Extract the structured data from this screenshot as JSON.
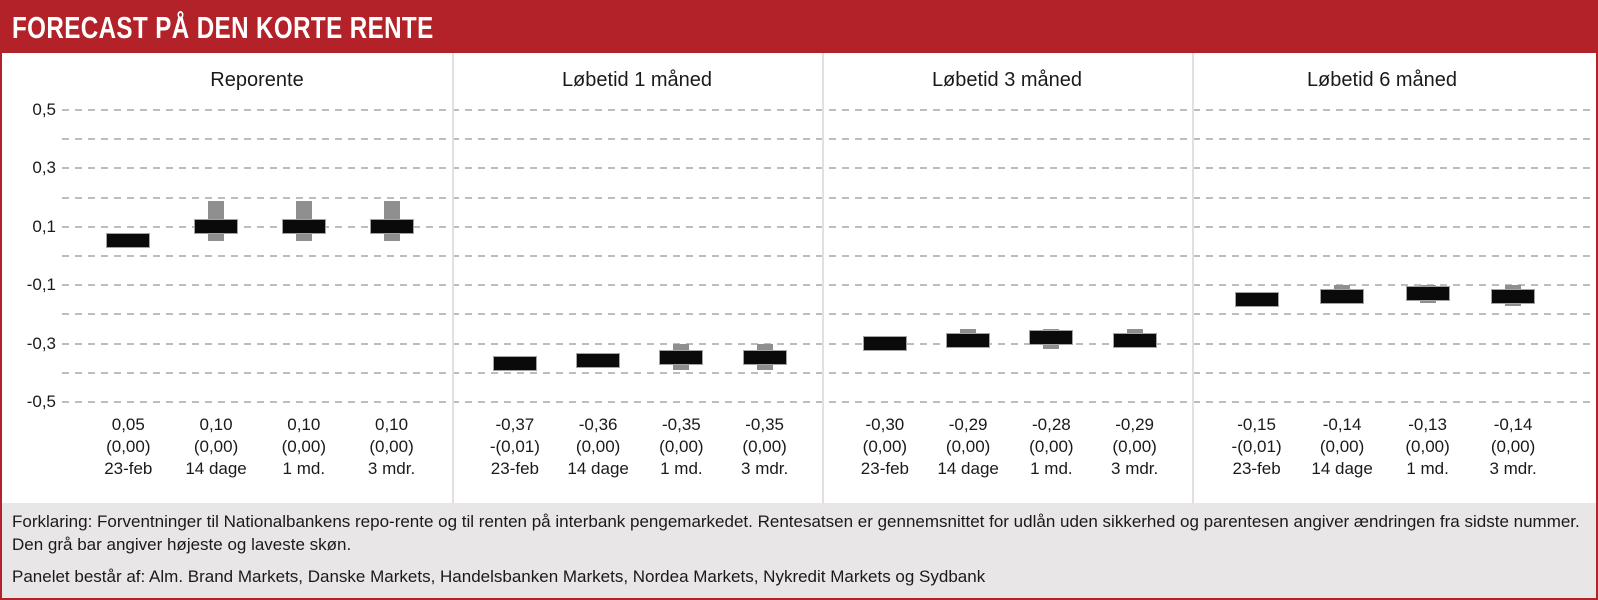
{
  "header": {
    "title": "FORECAST PÅ DEN KORTE RENTE"
  },
  "footer": {
    "explanation": "Forklaring: Forventninger til Nationalbankens repo-rente og til renten på interbank pengemarkedet. Rentesatsen er gennemsnittet for udlån uden sikkerhed og parentesen angiver ændringen fra sidste nummer. Den grå bar angiver højeste og laveste skøn.",
    "panel_note": "Panelet består af: Alm. Brand Markets, Danske Markets, Handelsbanken Markets, Nordea Markets, Nykredit Markets og Sydbank"
  },
  "colors": {
    "accent_red": "#b32129",
    "footer_bg": "#e8e6e7",
    "estimate_bar": "#0a0a0a",
    "range_bar": "#8f8f8f",
    "gridline": "#bdbdbd",
    "panel_divider": "#e1dfdf"
  },
  "chart_data": {
    "type": "bar",
    "title": "FORECAST PÅ DEN KORTE RENTE",
    "ylabel": "",
    "xlabel": "",
    "ylim": [
      -0.5,
      0.5
    ],
    "grid": "dashed horizontal every 0.1",
    "legend_position": "none",
    "y_ticks": [
      {
        "label": "0,5",
        "value": 0.5
      },
      {
        "label": "0,3",
        "value": 0.3
      },
      {
        "label": "0,1",
        "value": 0.1
      },
      {
        "label": "-0,1",
        "value": -0.1
      },
      {
        "label": "-0,3",
        "value": -0.3
      },
      {
        "label": "-0,5",
        "value": -0.5
      }
    ],
    "categories": [
      "23-feb",
      "14 dage",
      "1 md.",
      "3 mdr."
    ],
    "panels": [
      {
        "title": "Reporente",
        "points": [
          {
            "period": "23-feb",
            "value": 0.05,
            "value_label": "0,05",
            "change_label": "(0,00)",
            "range_low": null,
            "range_high": null
          },
          {
            "period": "14 dage",
            "value": 0.1,
            "value_label": "0,10",
            "change_label": "(0,00)",
            "range_low": 0.05,
            "range_high": 0.19
          },
          {
            "period": "1 md.",
            "value": 0.1,
            "value_label": "0,10",
            "change_label": "(0,00)",
            "range_low": 0.05,
            "range_high": 0.19
          },
          {
            "period": "3 mdr.",
            "value": 0.1,
            "value_label": "0,10",
            "change_label": "(0,00)",
            "range_low": 0.05,
            "range_high": 0.19
          }
        ]
      },
      {
        "title": "Løbetid 1 måned",
        "points": [
          {
            "period": "23-feb",
            "value": -0.37,
            "value_label": "-0,37",
            "change_label": "-(0,01)",
            "range_low": null,
            "range_high": null
          },
          {
            "period": "14 dage",
            "value": -0.36,
            "value_label": "-0,36",
            "change_label": "(0,00)",
            "range_low": null,
            "range_high": null
          },
          {
            "period": "1 md.",
            "value": -0.35,
            "value_label": "-0,35",
            "change_label": "(0,00)",
            "range_low": -0.39,
            "range_high": -0.3
          },
          {
            "period": "3 mdr.",
            "value": -0.35,
            "value_label": "-0,35",
            "change_label": "(0,00)",
            "range_low": -0.39,
            "range_high": -0.3
          }
        ]
      },
      {
        "title": "Løbetid 3 måned",
        "points": [
          {
            "period": "23-feb",
            "value": -0.3,
            "value_label": "-0,30",
            "change_label": "(0,00)",
            "range_low": null,
            "range_high": null
          },
          {
            "period": "14 dage",
            "value": -0.29,
            "value_label": "-0,29",
            "change_label": "(0,00)",
            "range_low": -0.31,
            "range_high": -0.25
          },
          {
            "period": "1 md.",
            "value": -0.28,
            "value_label": "-0,28",
            "change_label": "(0,00)",
            "range_low": -0.32,
            "range_high": -0.25
          },
          {
            "period": "3 mdr.",
            "value": -0.29,
            "value_label": "-0,29",
            "change_label": "(0,00)",
            "range_low": -0.3,
            "range_high": -0.25
          }
        ]
      },
      {
        "title": "Løbetid 6 måned",
        "points": [
          {
            "period": "23-feb",
            "value": -0.15,
            "value_label": "-0,15",
            "change_label": "-(0,01)",
            "range_low": null,
            "range_high": null
          },
          {
            "period": "14 dage",
            "value": -0.14,
            "value_label": "-0,14",
            "change_label": "(0,00)",
            "range_low": -0.15,
            "range_high": -0.1
          },
          {
            "period": "1 md.",
            "value": -0.13,
            "value_label": "-0,13",
            "change_label": "(0,00)",
            "range_low": -0.16,
            "range_high": -0.1
          },
          {
            "period": "3 mdr.",
            "value": -0.14,
            "value_label": "-0,14",
            "change_label": "(0,00)",
            "range_low": -0.17,
            "range_high": -0.1
          }
        ]
      }
    ]
  }
}
